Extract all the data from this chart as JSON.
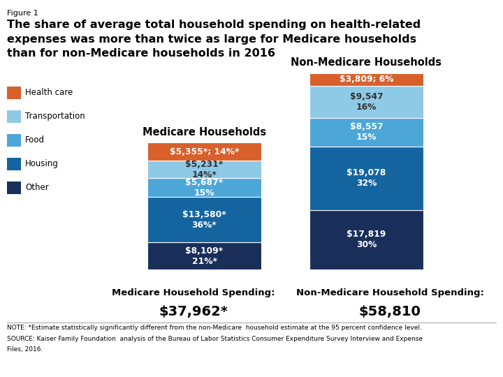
{
  "figure_label": "Figure 1",
  "title_line1": "The share of average total household spending on health-related",
  "title_line2": "expenses was more than twice as large for Medicare households",
  "title_line3": "than for non-Medicare households in 2016",
  "medicare_label": "Medicare Households",
  "non_medicare_label": "Non-Medicare Households",
  "categories": [
    "Other",
    "Housing",
    "Food",
    "Transportation",
    "Health care"
  ],
  "colors": [
    "#1a2e5a",
    "#1464a0",
    "#4da6d8",
    "#8ecae6",
    "#d95f2b"
  ],
  "medicare_values": [
    8109,
    13580,
    5687,
    5231,
    5355
  ],
  "non_medicare_values": [
    17819,
    19078,
    8557,
    9547,
    3809
  ],
  "medicare_bar_labels": [
    "$8,109*\n21%*",
    "$13,580*\n36%*",
    "$5,687*\n15%",
    "$5,231*\n14%*",
    "$5,355*; 14%*"
  ],
  "non_medicare_bar_labels": [
    "$17,819\n30%",
    "$19,078\n32%",
    "$8,557\n15%",
    "$9,547\n16%",
    "$3,809; 6%"
  ],
  "medicare_label_colors": [
    "white",
    "white",
    "white",
    "#333333",
    "white"
  ],
  "non_medicare_label_colors": [
    "white",
    "white",
    "white",
    "#333333",
    "white"
  ],
  "medicare_total_label": "Medicare Household Spending:",
  "medicare_total_value": "$37,962*",
  "non_medicare_total_label": "Non-Medicare Household Spending:",
  "non_medicare_total_value": "$58,810",
  "note_line1": "NOTE: *Estimate statistically significantly different from the non-Medicare  household estimate at the 95 percent confidence level.",
  "note_line2": "SOURCE: Kaiser Family Foundation  analysis of the Bureau of Labor Statistics Consumer Expenditure Survey Interview and Expense",
  "note_line3": "Files, 2016.",
  "legend_labels": [
    "Health care",
    "Transportation",
    "Food",
    "Housing",
    "Other"
  ],
  "legend_colors": [
    "#d95f2b",
    "#8ecae6",
    "#4da6d8",
    "#1464a0",
    "#1a2e5a"
  ],
  "bg_color": "#ffffff"
}
